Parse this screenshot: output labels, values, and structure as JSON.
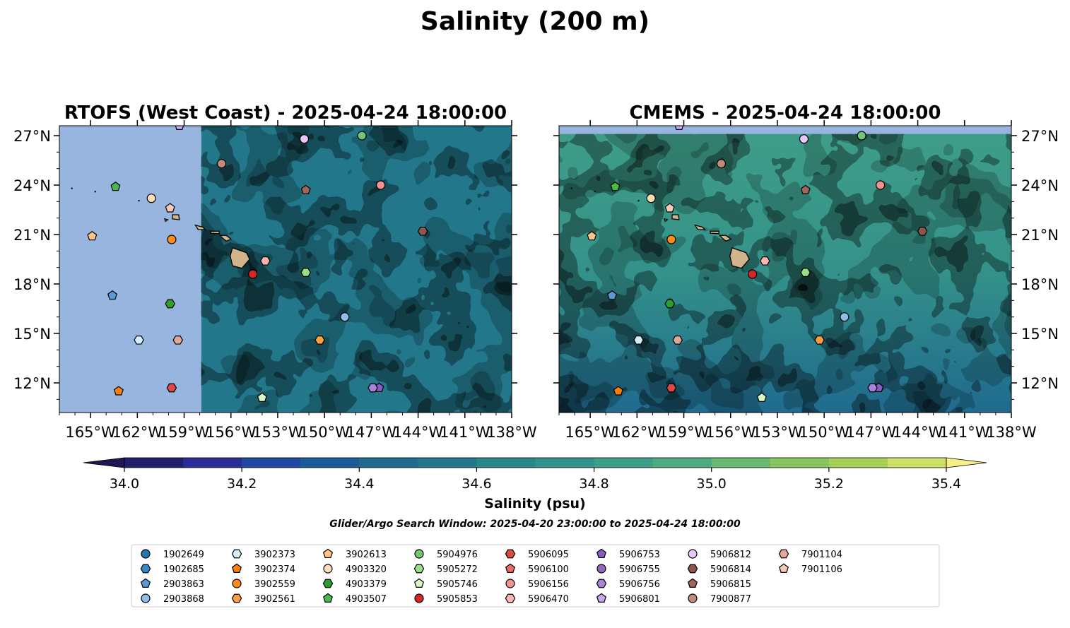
{
  "figure": {
    "title": "Salinity (200 m)",
    "search_window": "Glider/Argo Search Window: 2025-04-20 23:00:00 to 2025-04-24 18:00:00"
  },
  "chart_data": [
    {
      "type": "heatmap",
      "title": "RTOFS (West Coast) - 2025-04-24 18:00:00",
      "x_range": [
        -167,
        -138
      ],
      "y_range": [
        10.2,
        27.6
      ],
      "xticks": [
        "165°W",
        "162°W",
        "159°W",
        "156°W",
        "153°W",
        "150°W",
        "147°W",
        "144°W",
        "141°W",
        "138°W"
      ],
      "yticks": [
        "27°N",
        "24°N",
        "21°N",
        "18°N",
        "15°N",
        "12°N"
      ],
      "no_data_west_of": -157.9,
      "field_mean_psu": 34.55
    },
    {
      "type": "heatmap",
      "title": "CMEMS - 2025-04-24 18:00:00",
      "x_range": [
        -167,
        -138
      ],
      "y_range": [
        10.2,
        27.6
      ],
      "xticks": [
        "165°W",
        "162°W",
        "159°W",
        "156°W",
        "153°W",
        "150°W",
        "147°W",
        "144°W",
        "141°W",
        "138°W"
      ],
      "yticks": [
        "27°N",
        "24°N",
        "21°N",
        "18°N",
        "15°N",
        "12°N"
      ],
      "no_data_north_of": 27.1,
      "field_mean_psu": 34.75
    }
  ],
  "colorbar": {
    "label": "Salinity (psu)",
    "levels": [
      34.0,
      34.1,
      34.2,
      34.3,
      34.4,
      34.5,
      34.6,
      34.7,
      34.8,
      34.9,
      35.0,
      35.1,
      35.2,
      35.3,
      35.4
    ],
    "tick_labels": [
      "34.0",
      "34.2",
      "34.4",
      "34.6",
      "34.8",
      "35.0",
      "35.2",
      "35.4"
    ],
    "colors": [
      "#241d6c",
      "#2a2c98",
      "#1f48a0",
      "#1d5b98",
      "#1f6a8e",
      "#22778a",
      "#2b8689",
      "#34928a",
      "#3f9e88",
      "#4fab82",
      "#67b870",
      "#88c460",
      "#a6cf55",
      "#cfe06a"
    ],
    "under_color": "#231452",
    "over_color": "#f5ef8a"
  },
  "floats": [
    {
      "id": "1902649",
      "color": "#1f77b4",
      "marker": "circle",
      "lon": null,
      "lat": null
    },
    {
      "id": "1902685",
      "color": "#3a87c7",
      "marker": "hexagon",
      "lon": null,
      "lat": null
    },
    {
      "id": "2903863",
      "color": "#5a9bd5",
      "marker": "pentagon",
      "lon": -163.6,
      "lat": 17.3
    },
    {
      "id": "2903868",
      "color": "#8fbfe8",
      "marker": "circle",
      "lon": -148.7,
      "lat": 16.0
    },
    {
      "id": "3902373",
      "color": "#d6ecfb",
      "marker": "hexagon",
      "lon": -161.9,
      "lat": 14.6
    },
    {
      "id": "3902374",
      "color": "#ff7f0e",
      "marker": "pentagon",
      "lon": -163.2,
      "lat": 11.5
    },
    {
      "id": "3902559",
      "color": "#ff8c1a",
      "marker": "circle",
      "lon": -159.8,
      "lat": 20.7
    },
    {
      "id": "3902561",
      "color": "#ffa040",
      "marker": "hexagon",
      "lon": -150.3,
      "lat": 14.6
    },
    {
      "id": "3902613",
      "color": "#ffc48a",
      "marker": "pentagon",
      "lon": -164.9,
      "lat": 20.9
    },
    {
      "id": "4903320",
      "color": "#ffddb8",
      "marker": "circle",
      "lon": -161.1,
      "lat": 23.2
    },
    {
      "id": "4903379",
      "color": "#2ca02c",
      "marker": "hexagon",
      "lon": -159.9,
      "lat": 16.8
    },
    {
      "id": "4903507",
      "color": "#4bb84b",
      "marker": "pentagon",
      "lon": -163.4,
      "lat": 23.9
    },
    {
      "id": "5904976",
      "color": "#74c476",
      "marker": "circle",
      "lon": -147.6,
      "lat": 27.0
    },
    {
      "id": "5905272",
      "color": "#98df8a",
      "marker": "hexagon",
      "lon": -151.2,
      "lat": 18.7
    },
    {
      "id": "5905746",
      "color": "#d7f7c8",
      "marker": "pentagon",
      "lon": -154.0,
      "lat": 11.1
    },
    {
      "id": "5905853",
      "color": "#d62728",
      "marker": "circle",
      "lon": -154.6,
      "lat": 18.6
    },
    {
      "id": "5906095",
      "color": "#e04848",
      "marker": "hexagon",
      "lon": -159.8,
      "lat": 11.7
    },
    {
      "id": "5906100",
      "color": "#ec6a6a",
      "marker": "pentagon",
      "lon": null,
      "lat": null
    },
    {
      "id": "5906156",
      "color": "#f4928e",
      "marker": "circle",
      "lon": -146.4,
      "lat": 24.0
    },
    {
      "id": "5906470",
      "color": "#ffb6b0",
      "marker": "hexagon",
      "lon": -153.8,
      "lat": 19.4
    },
    {
      "id": "5906753",
      "color": "#8c5cc4",
      "marker": "pentagon",
      "lon": -146.5,
      "lat": 11.7
    },
    {
      "id": "5906755",
      "color": "#9467bd",
      "marker": "circle",
      "lon": null,
      "lat": null
    },
    {
      "id": "5906756",
      "color": "#a883d6",
      "marker": "hexagon",
      "lon": -146.9,
      "lat": 11.7
    },
    {
      "id": "5906801",
      "color": "#c8a8ee",
      "marker": "pentagon",
      "lon": -159.3,
      "lat": 27.6
    },
    {
      "id": "5906812",
      "color": "#e8c8f8",
      "marker": "circle",
      "lon": -151.3,
      "lat": 26.8
    },
    {
      "id": "5906814",
      "color": "#8c564b",
      "marker": "hexagon",
      "lon": -143.7,
      "lat": 21.2
    },
    {
      "id": "5906815",
      "color": "#a0665a",
      "marker": "pentagon",
      "lon": -151.2,
      "lat": 23.7
    },
    {
      "id": "7900877",
      "color": "#c08a7c",
      "marker": "circle",
      "lon": -156.6,
      "lat": 25.3
    },
    {
      "id": "7901104",
      "color": "#e0a898",
      "marker": "hexagon",
      "lon": -159.4,
      "lat": 14.6
    },
    {
      "id": "7901106",
      "color": "#f8c8b8",
      "marker": "pentagon",
      "lon": -159.9,
      "lat": 22.6
    }
  ]
}
